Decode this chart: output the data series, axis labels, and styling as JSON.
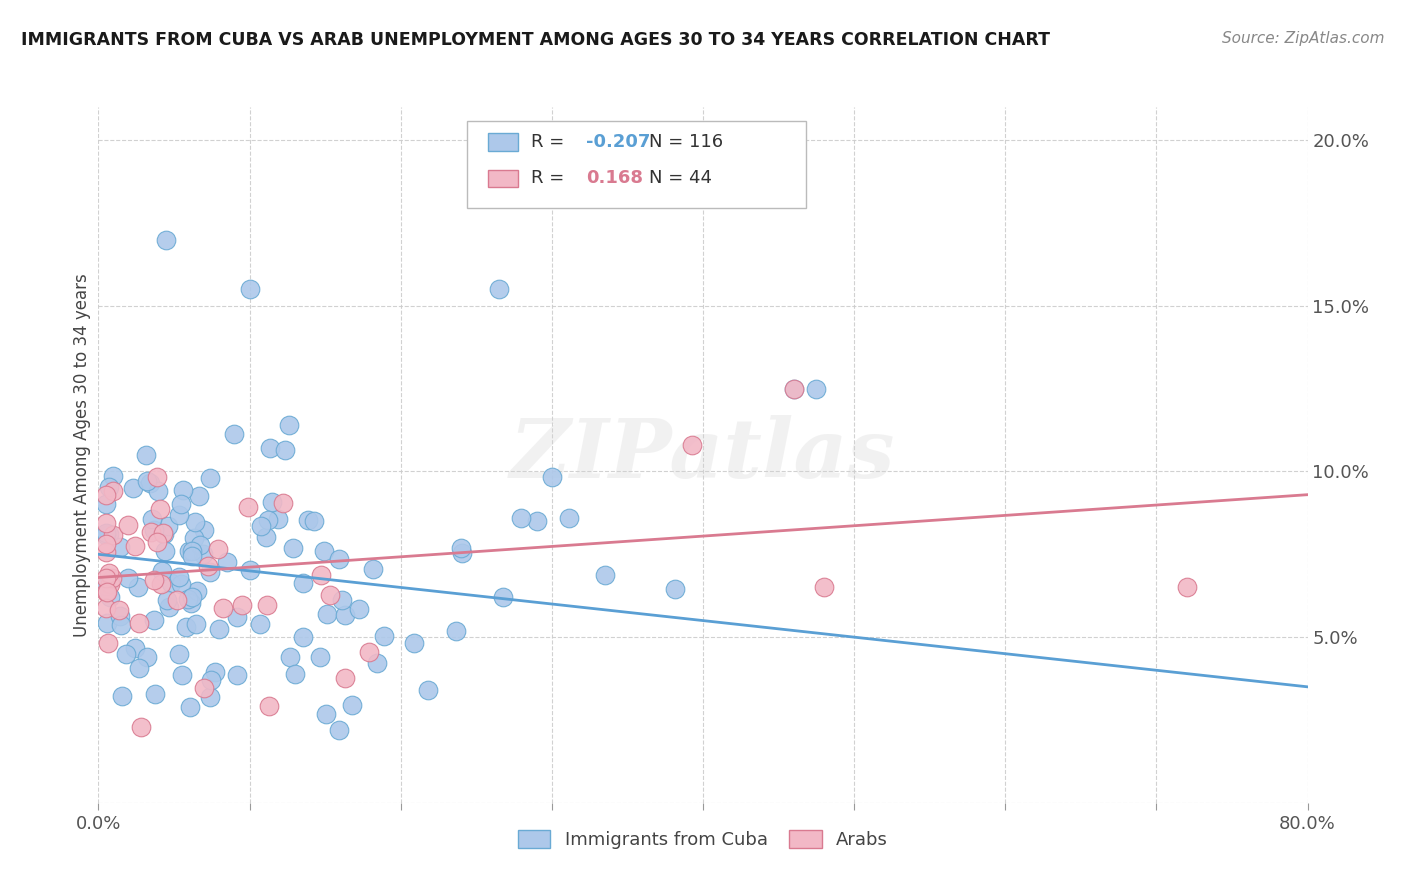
{
  "title": "IMMIGRANTS FROM CUBA VS ARAB UNEMPLOYMENT AMONG AGES 30 TO 34 YEARS CORRELATION CHART",
  "source": "Source: ZipAtlas.com",
  "ylabel": "Unemployment Among Ages 30 to 34 years",
  "xlim": [
    0.0,
    0.8
  ],
  "ylim": [
    0.0,
    0.21
  ],
  "xtick_positions": [
    0.0,
    0.1,
    0.2,
    0.3,
    0.4,
    0.5,
    0.6,
    0.7,
    0.8
  ],
  "xticklabels": [
    "0.0%",
    "",
    "",
    "",
    "",
    "",
    "",
    "",
    "80.0%"
  ],
  "ytick_positions": [
    0.0,
    0.05,
    0.1,
    0.15,
    0.2
  ],
  "yticklabels_right": [
    "",
    "5.0%",
    "10.0%",
    "15.0%",
    "20.0%"
  ],
  "cuba_color": "#adc8ea",
  "cuba_edge_color": "#6aaad4",
  "arab_color": "#f2b8c6",
  "arab_edge_color": "#d97a90",
  "cuba_R": -0.207,
  "cuba_N": 116,
  "arab_R": 0.168,
  "arab_N": 44,
  "cuba_line_color": "#5a9fd4",
  "arab_line_color": "#d97a90",
  "background_color": "#ffffff",
  "watermark": "ZIPatlas",
  "cuba_line_x0": 0.0,
  "cuba_line_y0": 0.075,
  "cuba_line_x1": 0.8,
  "cuba_line_y1": 0.035,
  "arab_line_x0": 0.0,
  "arab_line_y0": 0.068,
  "arab_line_x1": 0.8,
  "arab_line_y1": 0.093
}
